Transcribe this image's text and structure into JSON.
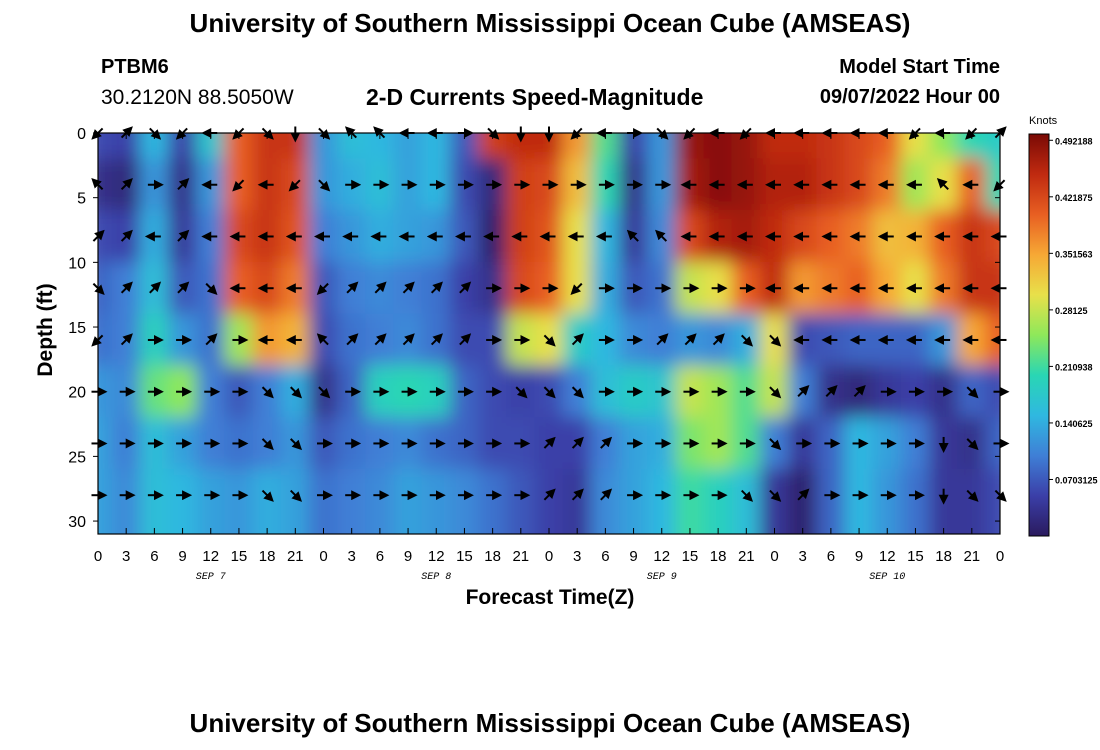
{
  "header": {
    "title": "University of Southern Mississippi Ocean Cube (AMSEAS)",
    "station": "PTBM6",
    "coords": "30.2120N  88.5050W",
    "subtitle": "2-D Currents Speed-Magnitude",
    "model_start_label": "Model Start Time",
    "model_start_value": "09/07/2022 Hour 00"
  },
  "footer": {
    "title": "University of Southern Mississippi Ocean Cube (AMSEAS)"
  },
  "colors": {
    "colormap": [
      "#2a1a5e",
      "#3b3fa8",
      "#3f7fd6",
      "#2fb8e0",
      "#29d6b4",
      "#8ee85a",
      "#e8e04a",
      "#f6a835",
      "#e85f22",
      "#c02a10",
      "#7a0a05"
    ],
    "arrow": "#000000",
    "axis": "#000000"
  },
  "chart_data": {
    "type": "heatmap",
    "title": "2-D Currents Speed-Magnitude",
    "xlabel": "Forecast Time(Z)",
    "ylabel": "Depth (ft)",
    "x_range_hours": [
      0,
      96
    ],
    "y_range_ft": [
      0,
      31
    ],
    "x_ticks": [
      {
        "h": 0,
        "label": "0"
      },
      {
        "h": 3,
        "label": "3"
      },
      {
        "h": 6,
        "label": "6"
      },
      {
        "h": 9,
        "label": "9"
      },
      {
        "h": 12,
        "label": "12"
      },
      {
        "h": 15,
        "label": "15"
      },
      {
        "h": 18,
        "label": "18"
      },
      {
        "h": 21,
        "label": "21"
      },
      {
        "h": 24,
        "label": "0"
      },
      {
        "h": 27,
        "label": "3"
      },
      {
        "h": 30,
        "label": "6"
      },
      {
        "h": 33,
        "label": "9"
      },
      {
        "h": 36,
        "label": "12"
      },
      {
        "h": 39,
        "label": "15"
      },
      {
        "h": 42,
        "label": "18"
      },
      {
        "h": 45,
        "label": "21"
      },
      {
        "h": 48,
        "label": "0"
      },
      {
        "h": 51,
        "label": "3"
      },
      {
        "h": 54,
        "label": "6"
      },
      {
        "h": 57,
        "label": "9"
      },
      {
        "h": 60,
        "label": "12"
      },
      {
        "h": 63,
        "label": "15"
      },
      {
        "h": 66,
        "label": "18"
      },
      {
        "h": 69,
        "label": "21"
      },
      {
        "h": 72,
        "label": "0"
      },
      {
        "h": 75,
        "label": "3"
      },
      {
        "h": 78,
        "label": "6"
      },
      {
        "h": 81,
        "label": "9"
      },
      {
        "h": 84,
        "label": "12"
      },
      {
        "h": 87,
        "label": "15"
      },
      {
        "h": 90,
        "label": "18"
      },
      {
        "h": 93,
        "label": "21"
      },
      {
        "h": 96,
        "label": "0"
      }
    ],
    "day_labels": [
      {
        "h": 12,
        "label": "SEP 7"
      },
      {
        "h": 36,
        "label": "SEP 8"
      },
      {
        "h": 60,
        "label": "SEP 9"
      },
      {
        "h": 84,
        "label": "SEP 10"
      }
    ],
    "y_ticks": [
      0,
      5,
      10,
      15,
      20,
      25,
      30
    ],
    "depths_ft": [
      0,
      4,
      8,
      12,
      16,
      20,
      24,
      28
    ],
    "times_h": [
      0,
      3,
      6,
      9,
      12,
      15,
      18,
      21,
      24,
      27,
      30,
      33,
      36,
      39,
      42,
      45,
      48,
      51,
      54,
      57,
      60,
      63,
      66,
      69,
      72,
      75,
      78,
      81,
      84,
      87,
      90,
      93,
      96
    ],
    "speed_knots": [
      [
        0.06,
        0.05,
        0.15,
        0.05,
        0.17,
        0.4,
        0.44,
        0.44,
        0.12,
        0.16,
        0.15,
        0.13,
        0.15,
        0.07,
        0.43,
        0.45,
        0.45,
        0.36,
        0.22,
        0.05,
        0.12,
        0.48,
        0.49,
        0.48,
        0.45,
        0.45,
        0.44,
        0.42,
        0.4,
        0.3,
        0.25,
        0.2,
        0.18
      ],
      [
        0.03,
        0.02,
        0.12,
        0.03,
        0.12,
        0.4,
        0.44,
        0.42,
        0.12,
        0.14,
        0.16,
        0.13,
        0.15,
        0.06,
        0.02,
        0.43,
        0.42,
        0.33,
        0.2,
        0.03,
        0.12,
        0.47,
        0.49,
        0.48,
        0.46,
        0.46,
        0.44,
        0.42,
        0.38,
        0.26,
        0.3,
        0.4,
        0.2
      ],
      [
        0.06,
        0.05,
        0.14,
        0.04,
        0.1,
        0.42,
        0.44,
        0.41,
        0.1,
        0.12,
        0.14,
        0.13,
        0.12,
        0.07,
        0.01,
        0.43,
        0.41,
        0.3,
        0.15,
        0.04,
        0.11,
        0.42,
        0.46,
        0.47,
        0.45,
        0.42,
        0.4,
        0.38,
        0.33,
        0.34,
        0.4,
        0.44,
        0.42
      ],
      [
        0.08,
        0.1,
        0.16,
        0.07,
        0.09,
        0.4,
        0.42,
        0.38,
        0.07,
        0.1,
        0.11,
        0.1,
        0.09,
        0.05,
        0.03,
        0.42,
        0.4,
        0.3,
        0.14,
        0.07,
        0.09,
        0.28,
        0.3,
        0.4,
        0.45,
        0.36,
        0.38,
        0.4,
        0.35,
        0.3,
        0.38,
        0.44,
        0.44
      ],
      [
        0.09,
        0.1,
        0.19,
        0.12,
        0.09,
        0.26,
        0.36,
        0.34,
        0.06,
        0.09,
        0.1,
        0.11,
        0.09,
        0.06,
        0.06,
        0.28,
        0.3,
        0.18,
        0.15,
        0.11,
        0.1,
        0.12,
        0.11,
        0.14,
        0.3,
        0.06,
        0.07,
        0.08,
        0.08,
        0.08,
        0.12,
        0.35,
        0.4
      ],
      [
        0.12,
        0.11,
        0.23,
        0.25,
        0.1,
        0.07,
        0.1,
        0.14,
        0.03,
        0.08,
        0.19,
        0.2,
        0.19,
        0.08,
        0.06,
        0.05,
        0.06,
        0.1,
        0.16,
        0.18,
        0.17,
        0.28,
        0.26,
        0.22,
        0.28,
        0.1,
        0.03,
        0.02,
        0.04,
        0.05,
        0.03,
        0.08,
        0.06
      ],
      [
        0.13,
        0.1,
        0.16,
        0.13,
        0.1,
        0.09,
        0.1,
        0.12,
        0.07,
        0.09,
        0.1,
        0.11,
        0.09,
        0.08,
        0.06,
        0.06,
        0.05,
        0.05,
        0.1,
        0.13,
        0.14,
        0.24,
        0.26,
        0.22,
        0.1,
        0.04,
        0.08,
        0.15,
        0.13,
        0.1,
        0.04,
        0.03,
        0.08
      ],
      [
        0.13,
        0.11,
        0.16,
        0.15,
        0.13,
        0.12,
        0.14,
        0.13,
        0.09,
        0.1,
        0.11,
        0.13,
        0.12,
        0.11,
        0.09,
        0.07,
        0.05,
        0.04,
        0.11,
        0.13,
        0.15,
        0.21,
        0.19,
        0.16,
        0.04,
        0.01,
        0.08,
        0.15,
        0.12,
        0.09,
        0.04,
        0.04,
        0.06
      ]
    ],
    "direction_deg": [
      [
        225,
        45,
        135,
        225,
        270,
        225,
        135,
        180,
        135,
        315,
        315,
        270,
        270,
        90,
        135,
        180,
        180,
        225,
        270,
        90,
        135,
        225,
        270,
        225,
        270,
        270,
        270,
        270,
        270,
        225,
        270,
        225,
        45
      ],
      [
        315,
        45,
        90,
        45,
        270,
        225,
        270,
        225,
        135,
        90,
        90,
        90,
        90,
        90,
        90,
        90,
        90,
        90,
        90,
        90,
        90,
        270,
        270,
        270,
        270,
        270,
        270,
        270,
        270,
        270,
        315,
        270,
        225
      ],
      [
        45,
        45,
        270,
        45,
        270,
        270,
        270,
        270,
        270,
        270,
        270,
        270,
        270,
        270,
        270,
        270,
        270,
        270,
        270,
        315,
        315,
        270,
        270,
        270,
        270,
        270,
        270,
        270,
        270,
        270,
        270,
        270,
        270
      ],
      [
        135,
        45,
        45,
        45,
        135,
        270,
        270,
        270,
        225,
        45,
        45,
        45,
        45,
        45,
        90,
        90,
        90,
        225,
        90,
        90,
        90,
        90,
        90,
        90,
        270,
        270,
        270,
        270,
        270,
        270,
        270,
        270,
        270
      ],
      [
        225,
        45,
        90,
        90,
        45,
        90,
        270,
        270,
        315,
        45,
        45,
        45,
        45,
        45,
        90,
        90,
        135,
        45,
        90,
        90,
        45,
        45,
        45,
        135,
        135,
        270,
        270,
        270,
        270,
        270,
        270,
        270,
        270
      ],
      [
        90,
        90,
        90,
        90,
        90,
        90,
        135,
        135,
        135,
        90,
        90,
        90,
        90,
        90,
        90,
        135,
        135,
        135,
        90,
        90,
        90,
        90,
        90,
        90,
        135,
        45,
        45,
        45,
        90,
        90,
        90,
        135,
        90
      ],
      [
        90,
        90,
        90,
        90,
        90,
        90,
        135,
        135,
        90,
        90,
        90,
        90,
        90,
        90,
        90,
        90,
        45,
        45,
        45,
        90,
        90,
        90,
        90,
        90,
        135,
        90,
        90,
        90,
        90,
        90,
        180,
        135,
        90
      ],
      [
        90,
        90,
        90,
        90,
        90,
        90,
        135,
        135,
        90,
        90,
        90,
        90,
        90,
        90,
        90,
        90,
        45,
        45,
        45,
        90,
        90,
        90,
        90,
        135,
        135,
        45,
        90,
        90,
        90,
        90,
        180,
        135,
        135
      ]
    ],
    "colorbar": {
      "title": "Knots",
      "range": [
        0,
        0.5
      ],
      "ticks": [
        "0.0703125",
        "0.140625",
        "0.210938",
        "0.28125",
        "0.351563",
        "0.421875",
        "0.492188"
      ],
      "tick_values": [
        0.0703125,
        0.140625,
        0.2109375,
        0.28125,
        0.3515625,
        0.421875,
        0.4921875
      ]
    }
  }
}
